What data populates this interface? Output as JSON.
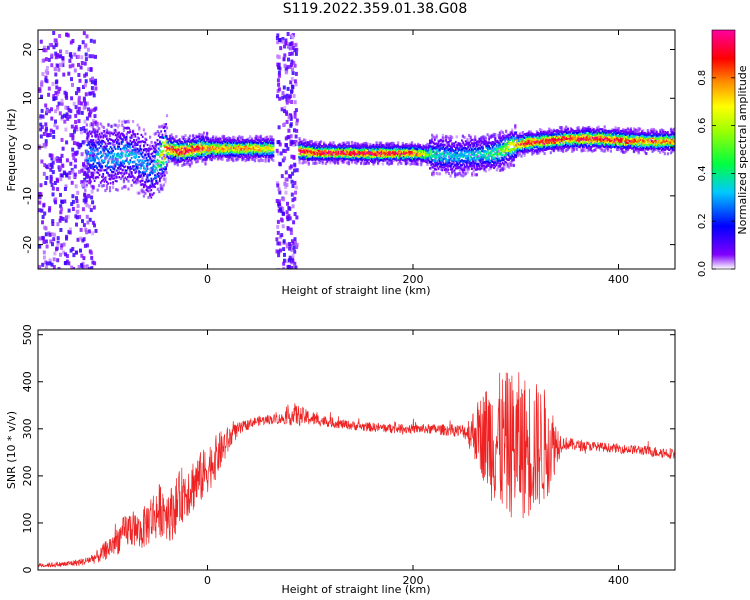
{
  "title": "S119.2022.359.01.38.G08",
  "colors": {
    "snr_line": "#ee2222",
    "axis": "#000000"
  },
  "chart_data": [
    {
      "type": "heatmap",
      "xlabel": "Height of straight line (km)",
      "ylabel": "Frequency (Hz)",
      "xlim": [
        -165,
        455
      ],
      "ylim": [
        -25,
        24
      ],
      "x_ticks": [
        0,
        200,
        400
      ],
      "y_ticks": [
        -20,
        -10,
        0,
        10,
        20
      ],
      "colorbar": {
        "label": "Normalized spectral amplitude",
        "range": [
          0.0,
          1.0
        ],
        "ticks": [
          0.0,
          0.2,
          0.4,
          0.6,
          0.8
        ],
        "colormap": "gist_rainbow_r"
      },
      "ridge": {
        "x": [
          -115,
          -95,
          -80,
          -65,
          -55,
          -48,
          -40,
          -30,
          -20,
          -10,
          0,
          20,
          40,
          60,
          68,
          80,
          90,
          100,
          150,
          200,
          220,
          240,
          260,
          280,
          295,
          310,
          330,
          350,
          380,
          410,
          455
        ],
        "freq": [
          -1.5,
          -2.0,
          -1.0,
          -2.5,
          -5.0,
          -2.0,
          0.0,
          -0.5,
          -0.5,
          0.0,
          0.0,
          0.0,
          0.0,
          0.0,
          0.0,
          -0.3,
          -0.5,
          -0.8,
          -1.0,
          -1.0,
          -1.3,
          -1.6,
          -1.3,
          -1.0,
          0.5,
          1.2,
          1.5,
          2.0,
          2.0,
          1.6,
          1.4
        ],
        "amplitude": [
          0.3,
          0.3,
          0.35,
          0.3,
          0.25,
          0.5,
          0.85,
          0.9,
          0.95,
          0.9,
          0.8,
          0.75,
          0.8,
          0.7,
          0.6,
          0.95,
          0.95,
          0.95,
          0.95,
          0.9,
          0.4,
          0.35,
          0.35,
          0.45,
          0.7,
          0.9,
          0.95,
          0.9,
          0.95,
          0.85,
          0.8
        ]
      }
    },
    {
      "type": "line",
      "xlabel": "Height of straight line (km)",
      "ylabel": "SNR (10 * v/v)",
      "xlim": [
        -165,
        455
      ],
      "ylim": [
        0,
        510
      ],
      "x_ticks": [
        0,
        200,
        400
      ],
      "y_ticks": [
        0,
        100,
        200,
        300,
        400,
        500
      ],
      "series": [
        {
          "x": [
            -165,
            -140,
            -120,
            -105,
            -95,
            -85,
            -75,
            -65,
            -55,
            -45,
            -35,
            -25,
            -15,
            -5,
            5,
            15,
            25,
            35,
            45,
            60,
            75,
            85,
            95,
            110,
            130,
            150,
            170,
            190,
            210,
            230,
            250,
            265,
            275,
            285,
            300,
            315,
            330,
            345,
            360,
            380,
            400,
            420,
            440,
            455
          ],
          "y": [
            10,
            12,
            18,
            30,
            50,
            70,
            90,
            80,
            110,
            130,
            120,
            160,
            180,
            200,
            230,
            260,
            290,
            305,
            315,
            320,
            322,
            330,
            325,
            318,
            310,
            305,
            302,
            300,
            300,
            298,
            295,
            290,
            280,
            270,
            265,
            260,
            265,
            270,
            265,
            262,
            258,
            255,
            250,
            248
          ],
          "noise": [
            5,
            6,
            8,
            15,
            25,
            35,
            40,
            40,
            55,
            60,
            60,
            60,
            60,
            55,
            50,
            40,
            20,
            12,
            10,
            10,
            12,
            25,
            18,
            12,
            10,
            10,
            10,
            10,
            10,
            12,
            15,
            80,
            130,
            150,
            160,
            150,
            120,
            15,
            12,
            10,
            10,
            10,
            12,
            12
          ]
        }
      ]
    }
  ]
}
